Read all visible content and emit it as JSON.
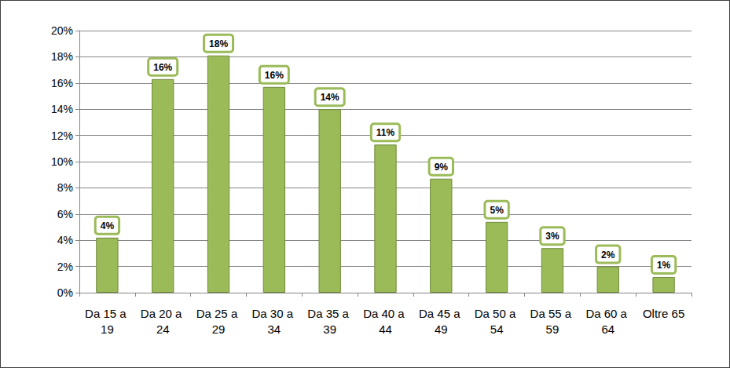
{
  "chart_data": {
    "type": "bar",
    "categories": [
      "Da 15 a 19",
      "Da 20 a 24",
      "Da 25 a 29",
      "Da 30 a 34",
      "Da 35 a 39",
      "Da 40 a 44",
      "Da 45 a 49",
      "Da 50 a 54",
      "Da 55 a 59",
      "Da 60 a 64",
      "Oltre 65"
    ],
    "values": [
      4.2,
      16.3,
      18.1,
      15.7,
      14.0,
      11.3,
      8.7,
      5.4,
      3.4,
      2.0,
      1.2
    ],
    "value_labels": [
      "4%",
      "16%",
      "18%",
      "16%",
      "14%",
      "11%",
      "9%",
      "5%",
      "3%",
      "2%",
      "1%"
    ],
    "data_labels": true,
    "color": "#9bbb59",
    "ylim": [
      0,
      20
    ],
    "yticks": [
      {
        "value": 0,
        "label": "0%"
      },
      {
        "value": 2,
        "label": "2%"
      },
      {
        "value": 4,
        "label": "4%"
      },
      {
        "value": 6,
        "label": "6%"
      },
      {
        "value": 8,
        "label": "8%"
      },
      {
        "value": 10,
        "label": "10%"
      },
      {
        "value": 12,
        "label": "12%"
      },
      {
        "value": 14,
        "label": "14%"
      },
      {
        "value": 16,
        "label": "16%"
      },
      {
        "value": 18,
        "label": "18%"
      },
      {
        "value": 20,
        "label": "20%"
      }
    ],
    "grid": true
  }
}
